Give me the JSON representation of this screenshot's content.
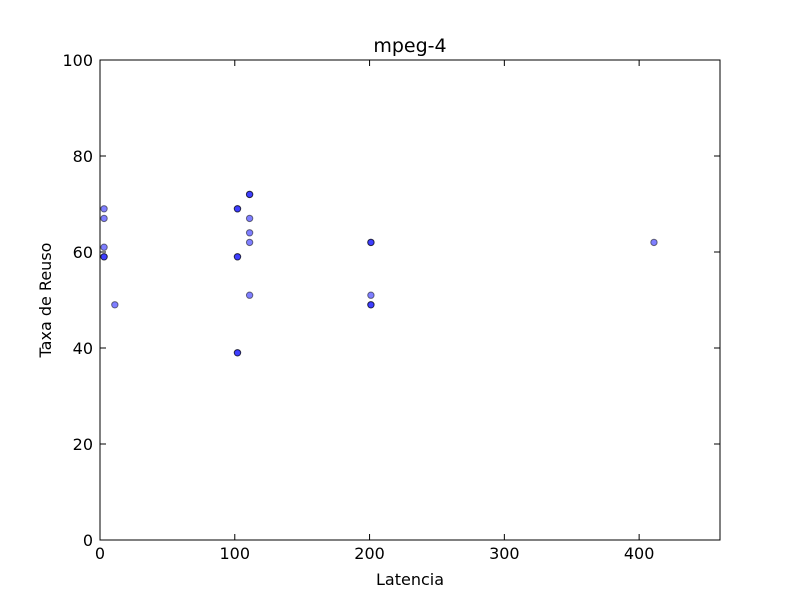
{
  "chart_data": {
    "type": "scatter",
    "title": "mpeg-4",
    "xlabel": "Latencia",
    "ylabel": "Taxa de Reuso",
    "xlim": [
      0,
      460
    ],
    "ylim": [
      0,
      100
    ],
    "xticks": [
      0,
      100,
      200,
      300,
      400
    ],
    "yticks": [
      0,
      20,
      40,
      60,
      80,
      100
    ],
    "grid": false,
    "colors": {
      "point_fill": "#0000ff",
      "point_edge": "#000000",
      "axes": "#000000",
      "background": "#ffffff"
    },
    "point_alpha": 0.5,
    "series": [
      {
        "points": [
          {
            "x": 3,
            "y": 69
          },
          {
            "x": 3,
            "y": 67
          },
          {
            "x": 3,
            "y": 61
          },
          {
            "x": 3,
            "y": 59
          },
          {
            "x": 3,
            "y": 59
          },
          {
            "x": 11,
            "y": 49
          },
          {
            "x": 102,
            "y": 69
          },
          {
            "x": 102,
            "y": 69
          },
          {
            "x": 102,
            "y": 59
          },
          {
            "x": 102,
            "y": 59
          },
          {
            "x": 102,
            "y": 39
          },
          {
            "x": 102,
            "y": 39
          },
          {
            "x": 111,
            "y": 72
          },
          {
            "x": 111,
            "y": 72
          },
          {
            "x": 111,
            "y": 67
          },
          {
            "x": 111,
            "y": 64
          },
          {
            "x": 111,
            "y": 62
          },
          {
            "x": 111,
            "y": 51
          },
          {
            "x": 201,
            "y": 62
          },
          {
            "x": 201,
            "y": 62
          },
          {
            "x": 201,
            "y": 51
          },
          {
            "x": 201,
            "y": 49
          },
          {
            "x": 201,
            "y": 49
          },
          {
            "x": 411,
            "y": 62
          }
        ]
      }
    ]
  }
}
